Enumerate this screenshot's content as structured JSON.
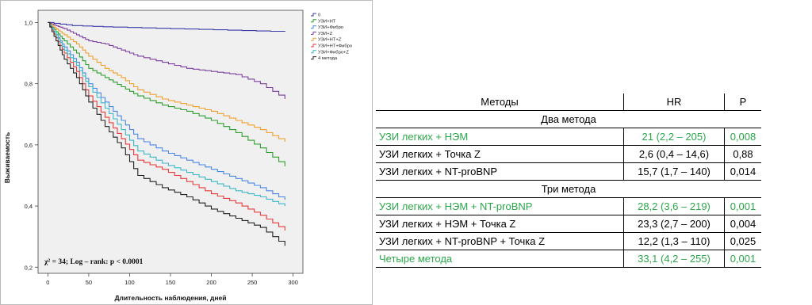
{
  "chart_data": {
    "type": "line",
    "title": "",
    "xlabel": "Длительность наблюдения, дней",
    "ylabel": "Выживаемость",
    "xlim": [
      -12,
      312
    ],
    "ylim": [
      0.18,
      1.04
    ],
    "x_ticks": [
      0,
      50,
      100,
      150,
      200,
      250,
      300
    ],
    "x_tick_labels": [
      "0",
      "50",
      "100",
      "150",
      "200",
      "250",
      "300"
    ],
    "y_ticks": [
      0.2,
      0.4,
      0.6,
      0.8,
      1.0
    ],
    "y_tick_labels": [
      "0,2",
      "0,4",
      "0,6",
      "0,8",
      "1,0"
    ],
    "legend_position": "right",
    "plot_background": "#f0f0f0",
    "annotation": "χ² = 34; Log – rank: p < 0.0001",
    "series": [
      {
        "name": "0",
        "color": "#3a3aa8",
        "x": [
          0,
          30,
          80,
          150,
          220,
          290
        ],
        "y": [
          1.0,
          0.99,
          0.985,
          0.98,
          0.975,
          0.97
        ]
      },
      {
        "name": "УЗИ+НТ",
        "color": "#2e9e2e",
        "x": [
          0,
          10,
          20,
          35,
          50,
          70,
          90,
          110,
          140,
          170,
          200,
          230,
          260,
          290
        ],
        "y": [
          1.0,
          0.97,
          0.94,
          0.9,
          0.85,
          0.82,
          0.79,
          0.76,
          0.73,
          0.71,
          0.68,
          0.64,
          0.59,
          0.53
        ]
      },
      {
        "name": "УЗИ+Фибро",
        "color": "#4a86e8",
        "x": [
          0,
          10,
          20,
          35,
          50,
          70,
          90,
          110,
          140,
          170,
          200,
          230,
          260,
          290
        ],
        "y": [
          1.0,
          0.96,
          0.92,
          0.87,
          0.8,
          0.74,
          0.68,
          0.62,
          0.58,
          0.55,
          0.52,
          0.49,
          0.46,
          0.42
        ]
      },
      {
        "name": "УЗИ+Z",
        "color": "#7b3fa0",
        "x": [
          0,
          10,
          20,
          35,
          50,
          70,
          90,
          110,
          140,
          170,
          200,
          230,
          260,
          290
        ],
        "y": [
          1.0,
          0.99,
          0.98,
          0.96,
          0.94,
          0.93,
          0.91,
          0.89,
          0.87,
          0.85,
          0.84,
          0.83,
          0.8,
          0.75
        ]
      },
      {
        "name": "УЗИ+НТ+Z",
        "color": "#f0a030",
        "x": [
          0,
          10,
          20,
          35,
          50,
          70,
          90,
          110,
          140,
          170,
          200,
          230,
          260,
          290
        ],
        "y": [
          1.0,
          0.98,
          0.96,
          0.93,
          0.89,
          0.85,
          0.82,
          0.78,
          0.75,
          0.73,
          0.71,
          0.68,
          0.65,
          0.61
        ]
      },
      {
        "name": "УЗИ+НТ+Фибро",
        "color": "#e83a3a",
        "x": [
          0,
          10,
          20,
          35,
          50,
          70,
          90,
          110,
          140,
          170,
          200,
          230,
          260,
          290
        ],
        "y": [
          1.0,
          0.95,
          0.9,
          0.84,
          0.76,
          0.69,
          0.62,
          0.55,
          0.52,
          0.48,
          0.44,
          0.41,
          0.37,
          0.32
        ]
      },
      {
        "name": "УЗИ+Фибро+Z",
        "color": "#3ab8c8",
        "x": [
          0,
          10,
          20,
          35,
          50,
          70,
          90,
          110,
          140,
          170,
          200,
          230,
          260,
          290
        ],
        "y": [
          1.0,
          0.96,
          0.91,
          0.86,
          0.79,
          0.72,
          0.65,
          0.58,
          0.54,
          0.51,
          0.48,
          0.45,
          0.43,
          0.4
        ]
      },
      {
        "name": "4 метода",
        "color": "#222222",
        "x": [
          0,
          10,
          20,
          35,
          50,
          70,
          90,
          110,
          140,
          170,
          200,
          230,
          260,
          290
        ],
        "y": [
          1.0,
          0.94,
          0.88,
          0.82,
          0.74,
          0.66,
          0.59,
          0.5,
          0.46,
          0.43,
          0.39,
          0.36,
          0.33,
          0.27
        ]
      }
    ]
  },
  "table": {
    "headers": [
      "Методы",
      "HR",
      "P"
    ],
    "highlight_color": "#2aa84a",
    "rows": [
      {
        "kind": "section",
        "label": "Два метода"
      },
      {
        "kind": "row",
        "method": "УЗИ легких + НЭМ",
        "hr": "21 (2,2 – 205)",
        "p": "0,008",
        "highlight": true
      },
      {
        "kind": "row",
        "method": "УЗИ легких + Точка Z",
        "hr": "2,6 (0,4 – 14,6)",
        "p": "0,88",
        "highlight": false
      },
      {
        "kind": "row",
        "method": "УЗИ легких + NT-proBNP",
        "hr": "15,7 (1,7 – 140)",
        "p": "0,014",
        "highlight": false
      },
      {
        "kind": "section",
        "label": "Три метода"
      },
      {
        "kind": "row",
        "method": "УЗИ легких + НЭМ + NT-proBNP",
        "hr": "28,2 (3,6 – 219)",
        "p": "0,001",
        "highlight": true
      },
      {
        "kind": "row",
        "method": "УЗИ легких + НЭМ + Точка Z",
        "hr": "23,3 (2,7 – 200)",
        "p": "0,004",
        "highlight": false
      },
      {
        "kind": "row",
        "method": "УЗИ легких + NT-proBNP + Точка Z",
        "hr": "12,2 (1,3 – 110)",
        "p": "0,025",
        "highlight": false
      },
      {
        "kind": "row",
        "method": "Четыре метода",
        "hr": "33,1 (4,2 – 255)",
        "p": "0,001",
        "highlight": true
      }
    ]
  }
}
